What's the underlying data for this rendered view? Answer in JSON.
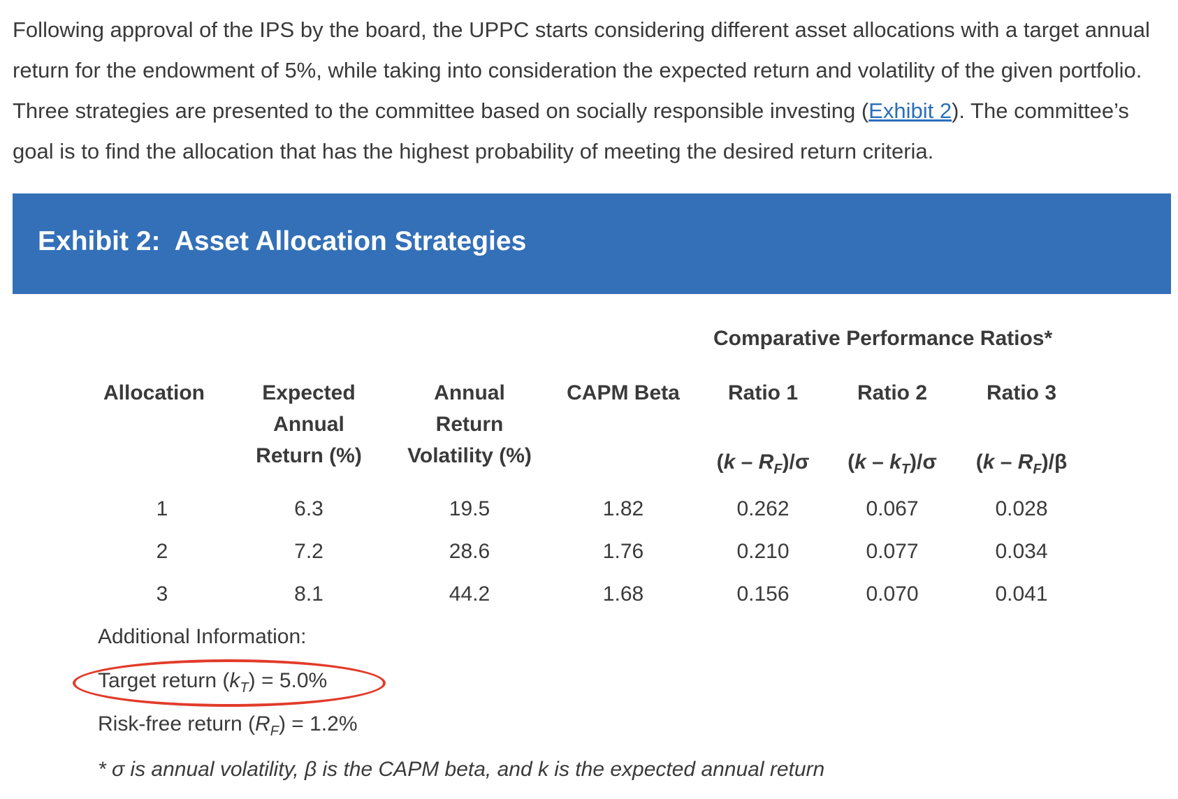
{
  "intro": {
    "text_before_link": "Following approval of the IPS by the board, the UPPC starts considering different asset allocations with a target annual return for the endowment of 5%, while taking into consideration the expected return and volatility of the given portfolio. Three strategies are presented to the committee based on socially responsible investing (",
    "link_text": "Exhibit 2",
    "text_after_link": "). The committee’s goal is to find the allocation that has the highest probability of meeting the desired return criteria."
  },
  "exhibit": {
    "title": "Exhibit 2:  Asset Allocation Strategies",
    "banner_color": "#3370b8",
    "group_header": "Comparative Performance Ratios*",
    "columns": {
      "allocation": [
        "Allocation"
      ],
      "expected_return": [
        "Expected",
        "Annual",
        "Return (%)"
      ],
      "volatility": [
        "Annual",
        "Return",
        "Volatility (%)"
      ],
      "beta": [
        "CAPM Beta"
      ],
      "ratio1": [
        "Ratio 1"
      ],
      "ratio2": [
        "Ratio 2"
      ],
      "ratio3": [
        "Ratio 3"
      ]
    },
    "formulas": {
      "ratio1": {
        "open": "(",
        "k": "k",
        "minus": " – ",
        "var": "R",
        "sub": "F",
        "close": ")/σ"
      },
      "ratio2": {
        "open": "(",
        "k": "k",
        "minus": " – ",
        "var": "k",
        "sub": "T",
        "close": ")/σ"
      },
      "ratio3": {
        "open": "(",
        "k": "k",
        "minus": " – ",
        "var": "R",
        "sub": "F",
        "close": ")/β"
      }
    },
    "rows": [
      {
        "allocation": "1",
        "expected_return": "6.3",
        "volatility": "19.5",
        "beta": "1.82",
        "ratio1": "0.262",
        "ratio2": "0.067",
        "ratio3": "0.028"
      },
      {
        "allocation": "2",
        "expected_return": "7.2",
        "volatility": "28.6",
        "beta": "1.76",
        "ratio1": "0.210",
        "ratio2": "0.077",
        "ratio3": "0.034"
      },
      {
        "allocation": "3",
        "expected_return": "8.1",
        "volatility": "44.2",
        "beta": "1.68",
        "ratio1": "0.156",
        "ratio2": "0.070",
        "ratio3": "0.041"
      }
    ],
    "additional_info": {
      "heading": "Additional Information:",
      "target": {
        "prefix": "Target return (",
        "var": "k",
        "sub": "T",
        "suffix": ") = 5.0%"
      },
      "riskfree": {
        "prefix": "Risk-free return (",
        "var": "R",
        "sub": "F",
        "suffix": ") = 1.2%"
      }
    },
    "footnote": "* σ is annual volatility, β is the CAPM beta, and k is the expected annual return",
    "highlight_color": "#e23b2a"
  }
}
